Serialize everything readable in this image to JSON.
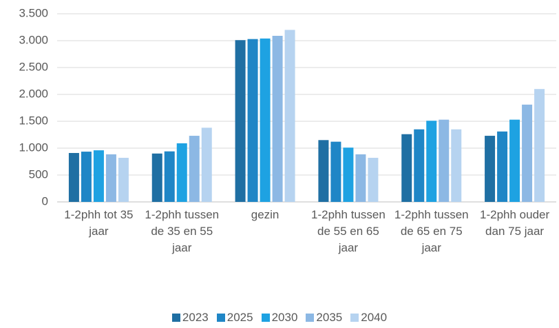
{
  "chart_data": {
    "type": "bar",
    "categories": [
      "1-2phh tot 35 jaar",
      "1-2phh tussen de 35 en 55 jaar",
      "gezin",
      "1-2phh tussen de 55 en 65 jaar",
      "1-2phh tussen de 65 en 75 jaar",
      "1-2phh ouder dan 75 jaar"
    ],
    "series": [
      {
        "name": "2023",
        "color": "#1f6fa3",
        "values": [
          910,
          900,
          3010,
          1150,
          1260,
          1230
        ]
      },
      {
        "name": "2025",
        "color": "#1f86c6",
        "values": [
          935,
          940,
          3030,
          1120,
          1350,
          1310
        ]
      },
      {
        "name": "2030",
        "color": "#1ea2e2",
        "values": [
          960,
          1090,
          3040,
          1010,
          1510,
          1530
        ]
      },
      {
        "name": "2035",
        "color": "#8cb8e4",
        "values": [
          885,
          1230,
          3090,
          885,
          1530,
          1810
        ]
      },
      {
        "name": "2040",
        "color": "#b6d3f0",
        "values": [
          820,
          1380,
          3200,
          820,
          1350,
          2100
        ]
      }
    ],
    "ylim": [
      0,
      3500
    ],
    "yticks": [
      0,
      500,
      {
        "value": 1000,
        "label": "1.000"
      },
      {
        "value": 1500,
        "label": "1.500"
      },
      {
        "value": 2000,
        "label": "2.000"
      },
      {
        "value": 2500,
        "label": "2.500"
      },
      {
        "value": 3000,
        "label": "3.000"
      },
      {
        "value": 3500,
        "label": "3.500"
      }
    ],
    "grid": true,
    "legend": "bottom"
  }
}
